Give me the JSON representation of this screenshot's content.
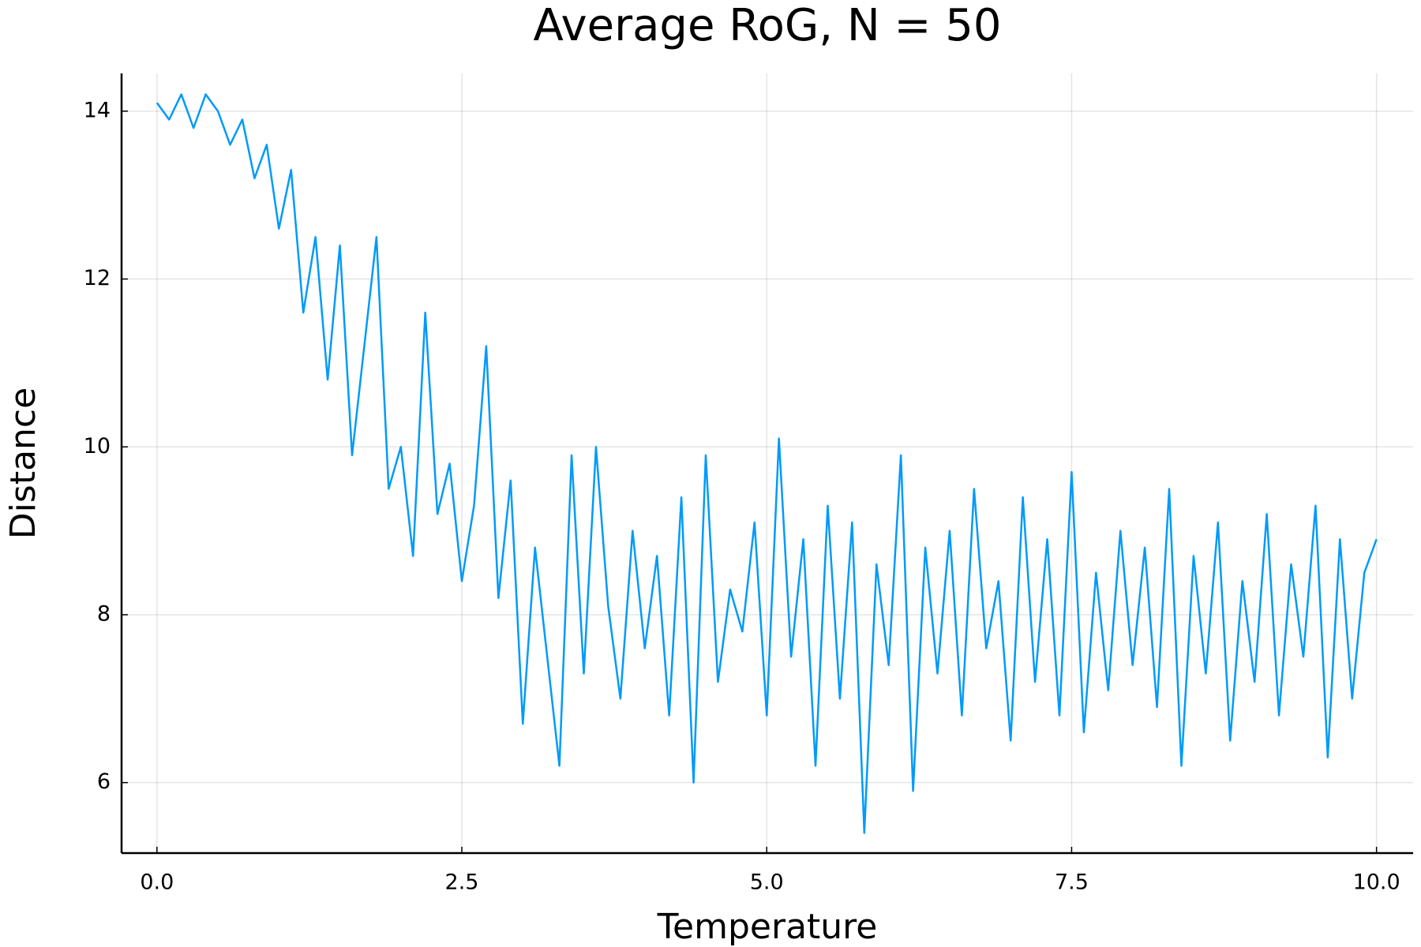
{
  "chart_data": {
    "type": "line",
    "title": "Average RoG, N = 50",
    "x_label": "Temperature",
    "y_label": "Distance",
    "color": "#009af9",
    "grid": true,
    "xlim": [
      -0.29,
      10.3
    ],
    "ylim": [
      5.16,
      14.45
    ],
    "xticks": [
      {
        "value": 0,
        "label": "0.0"
      },
      2.5,
      {
        "value": 5,
        "label": "5.0"
      },
      7.5,
      {
        "value": 10,
        "label": "10.0"
      }
    ],
    "yticks": [
      6,
      8,
      10,
      12,
      14
    ],
    "x": [
      0.0,
      0.1,
      0.2,
      0.3,
      0.4,
      0.5,
      0.6,
      0.7,
      0.8,
      0.9,
      1.0,
      1.1,
      1.2,
      1.3,
      1.4,
      1.5,
      1.6,
      1.7,
      1.8,
      1.9,
      2.0,
      2.1,
      2.2,
      2.3,
      2.4,
      2.5,
      2.6,
      2.7,
      2.8,
      2.9,
      3.0,
      3.1,
      3.2,
      3.3,
      3.4,
      3.5,
      3.6,
      3.7,
      3.8,
      3.9,
      4.0,
      4.1,
      4.2,
      4.3,
      4.4,
      4.5,
      4.6,
      4.7,
      4.8,
      4.9,
      5.0,
      5.1,
      5.2,
      5.3,
      5.4,
      5.5,
      5.6,
      5.7,
      5.8,
      5.9,
      6.0,
      6.1,
      6.2,
      6.3,
      6.4,
      6.5,
      6.6,
      6.7,
      6.8,
      6.9,
      7.0,
      7.1,
      7.2,
      7.3,
      7.4,
      7.5,
      7.6,
      7.7,
      7.8,
      7.9,
      8.0,
      8.1,
      8.2,
      8.3,
      8.4,
      8.5,
      8.6,
      8.7,
      8.8,
      8.9,
      9.0,
      9.1,
      9.2,
      9.3,
      9.4,
      9.5,
      9.6,
      9.7,
      9.8,
      9.9,
      10.0
    ],
    "values": [
      14.1,
      13.9,
      14.2,
      13.8,
      14.2,
      14.0,
      13.6,
      13.9,
      13.2,
      13.6,
      12.6,
      13.3,
      11.6,
      12.5,
      10.8,
      12.4,
      9.9,
      11.2,
      12.5,
      9.5,
      10.0,
      8.7,
      11.6,
      9.2,
      9.8,
      8.4,
      9.3,
      11.2,
      8.2,
      9.6,
      6.7,
      8.8,
      7.5,
      6.2,
      9.9,
      7.3,
      10.0,
      8.1,
      7.0,
      9.0,
      7.6,
      8.7,
      6.8,
      9.4,
      6.0,
      9.9,
      7.2,
      8.3,
      7.8,
      9.1,
      6.8,
      10.1,
      7.5,
      8.9,
      6.2,
      9.3,
      7.0,
      9.1,
      5.4,
      8.6,
      7.4,
      9.9,
      5.9,
      8.8,
      7.3,
      9.0,
      6.8,
      9.5,
      7.6,
      8.4,
      6.5,
      9.4,
      7.2,
      8.9,
      6.8,
      9.7,
      6.6,
      8.5,
      7.1,
      9.0,
      7.4,
      8.8,
      6.9,
      9.5,
      6.2,
      8.7,
      7.3,
      9.1,
      6.5,
      8.4,
      7.2,
      9.2,
      6.8,
      8.6,
      7.5,
      9.3,
      6.3,
      8.9,
      7.0,
      8.5,
      8.9
    ]
  }
}
